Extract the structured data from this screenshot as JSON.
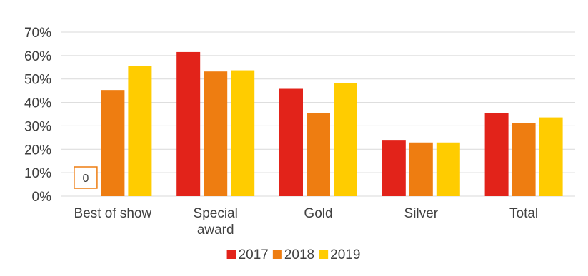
{
  "chart_data": {
    "type": "bar",
    "title": "",
    "xlabel": "",
    "ylabel": "",
    "categories": [
      "Best of show",
      "Special award",
      "Gold",
      "Silver",
      "Total"
    ],
    "series": [
      {
        "name": "2017",
        "color": "#e2231a",
        "values": [
          0,
          61.5,
          45.8,
          23.7,
          35.4
        ]
      },
      {
        "name": "2018",
        "color": "#ee7d11",
        "values": [
          45.3,
          53.2,
          35.4,
          22.9,
          31.3
        ]
      },
      {
        "name": "2019",
        "color": "#ffcc00",
        "values": [
          55.5,
          53.7,
          48.2,
          22.9,
          33.6
        ]
      }
    ],
    "ylim": [
      0,
      70
    ],
    "yticks": [
      "0%",
      "10%",
      "20%",
      "30%",
      "40%",
      "50%",
      "60%",
      "70%"
    ],
    "grid": true,
    "legend": "bottom",
    "annotation": {
      "text": "0",
      "category": "Best of show",
      "series": "2017",
      "border_color": "#ee7d11"
    }
  }
}
